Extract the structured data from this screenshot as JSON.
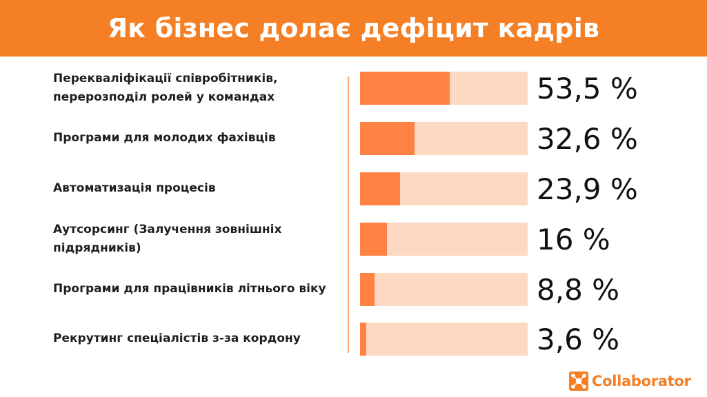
{
  "chart_data": {
    "type": "bar",
    "title": "Як бізнес долає дефіцит кадрів",
    "orientation": "horizontal",
    "categories": [
      "Перекваліфікації співробітників, перерозподіл ролей у командах",
      "Програми для молодих фахівців",
      "Автоматизація процесів",
      "Аутсорсинг (Залучення зовнішніх підрядників)",
      "Програми для працівників літнього віку",
      "Рекрутинг спеціалістів з-за кордону"
    ],
    "values": [
      53.5,
      32.6,
      23.9,
      16,
      8.8,
      3.6
    ],
    "value_labels": [
      "53,5 %",
      "32,6 %",
      "23,9 %",
      "16 %",
      "8,8 %",
      "3,6 %"
    ],
    "xlim": [
      0,
      100
    ],
    "colors": {
      "bar": "#ff8243",
      "track": "#fdd9c4",
      "header": "#f47f24"
    }
  },
  "brand": {
    "name": "Collaborator",
    "icon": "collaborator-logo-icon"
  }
}
